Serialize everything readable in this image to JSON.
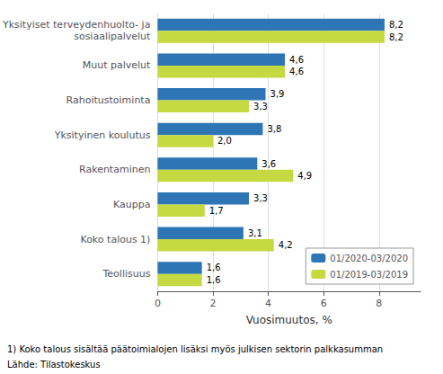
{
  "chart_data": {
    "type": "bar",
    "orientation": "horizontal",
    "categories": [
      "Yksityiset terveydenhuolto- ja\nsosiaalipalvelut",
      "Muut palvelut",
      "Rahoitustoiminta",
      "Yksityinen koulutus",
      "Rakentaminen",
      "Kauppa",
      "Koko talous 1)",
      "Teollisuus"
    ],
    "series": [
      {
        "name": "01/2020-03/2020",
        "color": "#2E75B6",
        "values": [
          8.2,
          4.6,
          3.9,
          3.8,
          3.6,
          3.3,
          3.1,
          1.6
        ],
        "value_labels": [
          "8,2",
          "4,6",
          "3,9",
          "3,8",
          "3,6",
          "3,3",
          "3,1",
          "1,6"
        ]
      },
      {
        "name": "01/2019-03/2019",
        "color": "#C5D941",
        "values": [
          8.2,
          4.6,
          3.3,
          2.0,
          4.9,
          1.7,
          4.2,
          1.6
        ],
        "value_labels": [
          "8,2",
          "4,6",
          "3,3",
          "2,0",
          "4,9",
          "1,7",
          "4,2",
          "1,6"
        ]
      }
    ],
    "data_labels": true,
    "xlabel": "Vuosimuutos, %",
    "xlim": [
      0,
      9.5
    ],
    "xticks": [
      0,
      2,
      4,
      6,
      8
    ],
    "grid": true,
    "legend": "lower right",
    "annotations": [
      "1) Koko talous sisältää päätoimialojen lisäksi myös julkisen sektorin palkkasumman",
      "Lähde: Tilastokeskus"
    ]
  }
}
